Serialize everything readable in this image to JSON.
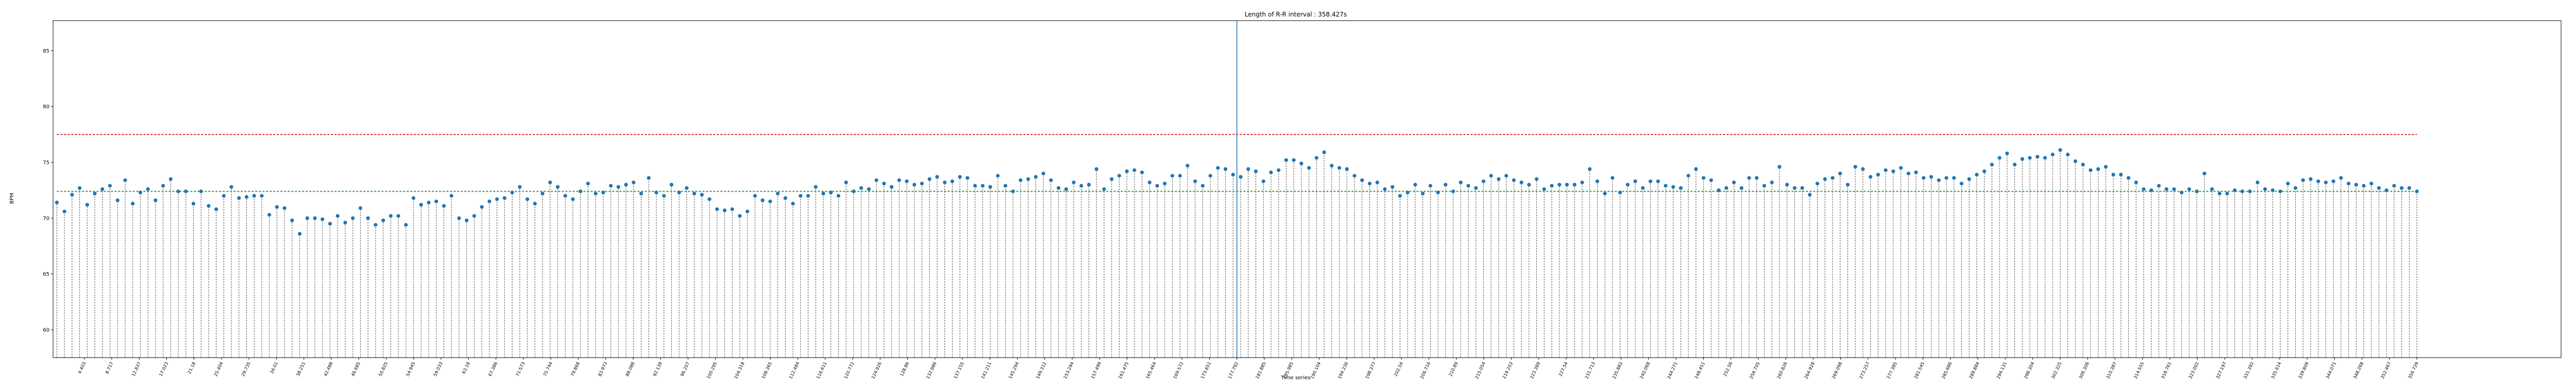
{
  "chart_data": {
    "type": "scatter",
    "title": "Length of R-R interval : 358.427s",
    "xlabel": "Time series",
    "ylabel": "BPM",
    "ylim": [
      57.5,
      87.7
    ],
    "yticks": [
      60,
      65,
      70,
      75,
      80,
      85
    ],
    "xlim": [
      -0.5,
      330
    ],
    "grid": false,
    "colors": {
      "markers": "#1f77b4",
      "stems": "#555555",
      "upper_line": "#d62728",
      "mean_line": "#2ca02c",
      "vline": "#1f77b4"
    },
    "reference_lines": {
      "upper": 77.5,
      "mean": 72.4,
      "vline_x": "177.792"
    },
    "x_ticks": [
      "4.403",
      "8.717",
      "12.837",
      "17.023",
      "21.18",
      "25.404",
      "29.735",
      "34.01",
      "38.251",
      "42.488",
      "46.685",
      "50.825",
      "54.945",
      "59.033",
      "63.18",
      "67.386",
      "71.573",
      "75.744",
      "79.868",
      "83.973",
      "88.088",
      "92.139",
      "96.207",
      "100.295",
      "104.318",
      "108.365",
      "112.484",
      "116.611",
      "120.772",
      "124.926",
      "128.86",
      "132.986",
      "137.155",
      "141.211",
      "145.294",
      "149.312",
      "153.294",
      "157.499",
      "161.475",
      "165.464",
      "169.572",
      "173.651",
      "177.792",
      "181.885",
      "185.985",
      "190.104",
      "194.236",
      "198.377",
      "202.54",
      "206.716",
      "210.89",
      "215.054",
      "219.203",
      "223.389",
      "227.54",
      "231.713",
      "235.882",
      "240.068",
      "244.271",
      "248.451",
      "252.56",
      "256.705",
      "260.826",
      "264.928",
      "269.098",
      "273.257",
      "277.385",
      "281.545",
      "285.686",
      "289.884",
      "294.131",
      "298.304",
      "302.325",
      "306.306",
      "310.387",
      "314.555",
      "318.761",
      "323.002",
      "327.197",
      "331.392",
      "335.614",
      "339.809",
      "344.071",
      "348.268",
      "352.467",
      "356.729"
    ],
    "values": [
      71.4,
      70.6,
      72.1,
      72.7,
      71.2,
      72.2,
      72.6,
      72.9,
      71.6,
      73.4,
      71.3,
      72.3,
      72.6,
      71.6,
      72.9,
      73.5,
      72.4,
      72.4,
      71.3,
      72.4,
      71.1,
      70.8,
      72.0,
      72.8,
      71.8,
      71.9,
      72.0,
      72.0,
      70.3,
      71.0,
      70.9,
      69.8,
      68.6,
      70.0,
      70.0,
      69.9,
      69.5,
      70.2,
      69.6,
      70.0,
      70.9,
      70.0,
      69.4,
      69.8,
      70.2,
      70.2,
      69.4,
      71.8,
      71.2,
      71.4,
      71.5,
      71.1,
      72.0,
      70.0,
      69.8,
      70.2,
      71.0,
      71.5,
      71.7,
      71.8,
      72.3,
      72.8,
      71.7,
      71.3,
      72.2,
      73.2,
      72.8,
      72.0,
      71.7,
      72.4,
      73.1,
      72.2,
      72.3,
      72.9,
      72.8,
      73.0,
      73.2,
      72.2,
      73.6,
      72.3,
      72.0,
      73.0,
      72.3,
      72.7,
      72.2,
      72.1,
      71.7,
      70.8,
      70.7,
      70.8,
      70.2,
      70.6,
      72.0,
      71.6,
      71.5,
      72.2,
      71.8,
      71.3,
      72.0,
      72.0,
      72.8,
      72.2,
      72.3,
      72.0,
      73.2,
      72.4,
      72.7,
      72.6,
      73.4,
      73.1,
      72.8,
      73.4,
      73.3,
      73.0,
      73.1,
      73.5,
      73.7,
      73.2,
      73.3,
      73.7,
      73.6,
      72.9,
      72.9,
      72.8,
      73.8,
      72.9,
      72.4,
      73.4,
      73.5,
      73.7,
      74.0,
      73.4,
      72.7,
      72.6,
      73.2,
      72.9,
      73.0,
      74.4,
      72.6,
      73.5,
      73.8,
      74.2,
      74.3,
      74.1,
      73.2,
      72.9,
      73.1,
      73.8,
      73.8,
      74.7,
      73.3,
      72.9,
      73.8,
      74.5,
      74.4,
      73.9,
      73.7,
      74.4,
      74.2,
      73.3,
      74.1,
      74.3,
      75.2,
      75.2,
      74.9,
      74.5,
      75.4,
      75.9,
      74.7,
      74.5,
      74.4,
      73.8,
      73.4,
      73.1,
      73.2,
      72.6,
      72.8,
      72.0,
      72.3,
      73.0,
      72.2,
      72.9,
      72.3,
      73.0,
      72.4,
      73.2,
      72.9,
      72.7,
      73.3,
      73.8,
      73.5,
      73.8,
      73.4,
      73.2,
      73.0,
      73.5,
      72.6,
      72.9,
      73.0,
      73.0,
      73.0,
      73.2,
      74.4,
      73.3,
      72.2,
      73.6,
      72.3,
      73.0,
      73.3,
      72.7,
      73.3,
      73.3,
      72.9,
      72.8,
      72.7,
      73.8,
      74.4,
      73.6,
      73.4,
      72.5,
      72.7,
      73.2,
      72.7,
      73.6,
      73.6,
      72.9,
      73.2,
      74.6,
      73.0,
      72.7,
      72.7,
      72.1,
      73.1,
      73.5,
      73.6,
      74.0,
      73.0,
      74.6,
      74.4,
      73.7,
      73.9,
      74.3,
      74.2,
      74.5,
      74.0,
      74.1,
      73.6,
      73.7,
      73.4,
      73.6,
      73.6,
      73.1,
      73.5,
      73.9,
      74.2,
      74.8,
      75.4,
      75.8,
      74.8,
      75.3,
      75.4,
      75.5,
      75.4,
      75.7,
      76.1,
      75.7,
      75.1,
      74.8,
      74.3,
      74.4,
      74.6,
      73.9,
      73.9,
      73.6,
      73.2,
      72.6,
      72.5,
      72.9,
      72.6,
      72.6,
      72.3,
      72.6,
      72.4,
      74.0,
      72.6,
      72.2,
      72.2,
      72.5,
      72.4,
      72.4,
      73.2,
      72.6,
      72.5,
      72.4,
      73.1,
      72.7,
      73.4,
      73.5,
      73.3,
      73.2,
      73.3,
      73.6,
      73.1,
      73.0,
      72.9,
      73.1,
      72.7,
      72.5,
      72.9,
      72.7,
      72.7,
      72.4
    ],
    "values_note": "",
    "series_extra": []
  }
}
